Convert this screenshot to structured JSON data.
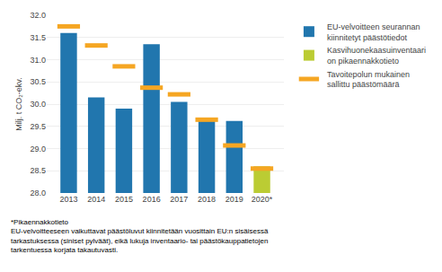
{
  "chart_data": {
    "type": "bar",
    "categories": [
      "2013",
      "2014",
      "2015",
      "2016",
      "2017",
      "2018",
      "2019",
      "2020*"
    ],
    "series": [
      {
        "name": "EU-velvoitteen seurannan\nkiinnitetyt päästötiedot",
        "type": "bar",
        "color": "#2176AE",
        "values": [
          31.6,
          30.15,
          29.9,
          31.35,
          30.05,
          29.62,
          29.62,
          null
        ]
      },
      {
        "name": "Kasvihuonekaasuinventaari\non pikaennakkotieto",
        "type": "bar",
        "color": "#BBCC33",
        "values": [
          null,
          null,
          null,
          null,
          null,
          null,
          null,
          28.6
        ]
      },
      {
        "name": "Tavoitepolun mukainen\nsallittu päästömäärä",
        "type": "scatter",
        "marker": "line-ew",
        "color": "#F5A623",
        "values": [
          31.75,
          31.32,
          30.85,
          30.37,
          30.22,
          29.65,
          29.07,
          28.55
        ]
      }
    ],
    "ylabel": "Milj. t CO₂-ekv.",
    "ylim": [
      28.0,
      32.0
    ],
    "yticks": [
      {
        "value": 28.0,
        "label": "28.0"
      },
      28.5,
      {
        "value": 29.0,
        "label": "29.0"
      },
      29.5,
      {
        "value": 30.0,
        "label": "30.0"
      },
      30.5,
      {
        "value": 31.0,
        "label": "31.0"
      },
      31.5,
      {
        "value": 32.0,
        "label": "32.0"
      }
    ],
    "grid": true,
    "legend": "right",
    "annotations": [
      "*Pikaennakkotieto\nEU-velvoitteeseen vaikuttavat päästöluvut kiinnitetään vuosittain EU:n sisäisessä\ntarkastuksessa (siniset pylväät), eikä lukuja inventaario- tai päästökauppatietojen\ntarkentuessa korjata takautuvasti."
    ]
  }
}
